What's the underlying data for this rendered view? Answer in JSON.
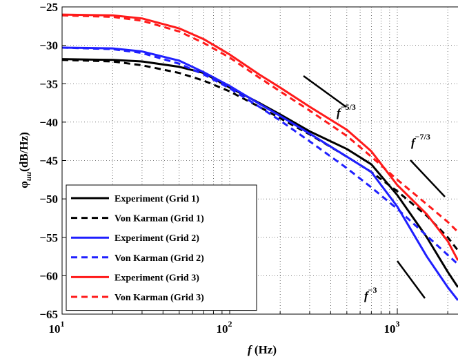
{
  "chart_data": {
    "type": "line",
    "x_label": {
      "main": "f",
      "rest": " (Hz)"
    },
    "y_label": {
      "main": "φ",
      "sub": "uu",
      "rest": "(dB/Hz)"
    },
    "x": [
      10,
      20,
      30,
      50,
      70,
      100,
      150,
      200,
      300,
      500,
      700,
      1000,
      1500,
      2000,
      2300
    ],
    "series": [
      {
        "name": "Experiment (Grid 1)",
        "color": "#000000",
        "dash": false,
        "values": [
          -31.8,
          -31.9,
          -32.1,
          -32.8,
          -33.6,
          -35.5,
          -37.5,
          -39,
          -41.2,
          -43.5,
          -45.5,
          -49.5,
          -55,
          -59.5,
          -61.5
        ]
      },
      {
        "name": "Von Karman (Grid 1)",
        "color": "#000000",
        "dash": true,
        "values": [
          -31.9,
          -32.1,
          -32.6,
          -33.6,
          -34.6,
          -36,
          -38,
          -39.5,
          -41.6,
          -44.5,
          -46.5,
          -49,
          -52.2,
          -55,
          -56.7
        ]
      },
      {
        "name": "Experiment (Grid 2)",
        "color": "#1f1fff",
        "dash": false,
        "values": [
          -30.3,
          -30.4,
          -30.8,
          -32,
          -33.5,
          -35.3,
          -37.6,
          -39.2,
          -41.5,
          -44.5,
          -46.5,
          -51,
          -57.5,
          -61.5,
          -63.2
        ]
      },
      {
        "name": "Von Karman (Grid 2)",
        "color": "#1f1fff",
        "dash": true,
        "values": [
          -30.3,
          -30.5,
          -31,
          -32.4,
          -33.8,
          -35.6,
          -38,
          -39.8,
          -42.5,
          -46,
          -48.5,
          -51.3,
          -54.8,
          -57.3,
          -58.5
        ]
      },
      {
        "name": "Experiment (Grid 3)",
        "color": "#ff1a1a",
        "dash": false,
        "values": [
          -26,
          -26.1,
          -26.5,
          -27.8,
          -29.2,
          -31.2,
          -33.8,
          -35.5,
          -38,
          -41,
          -43.8,
          -48.2,
          -52,
          -55.5,
          -58
        ]
      },
      {
        "name": "Von Karman (Grid 3)",
        "color": "#ff1a1a",
        "dash": true,
        "values": [
          -26.1,
          -26.3,
          -26.8,
          -28.2,
          -29.7,
          -31.6,
          -34.2,
          -36,
          -38.5,
          -41.8,
          -44.5,
          -47.5,
          -50.7,
          -53,
          -54.3
        ]
      }
    ],
    "xscale": "log",
    "xlim": [
      10,
      2300
    ],
    "ylim": [
      -65,
      -25
    ],
    "xticks": [
      {
        "value": 10,
        "label": "10",
        "exponent": "1"
      },
      {
        "value": 100,
        "label": "10",
        "exponent": "2"
      },
      {
        "value": 1000,
        "label": "10",
        "exponent": "3"
      }
    ],
    "minor_xticks": [
      20,
      30,
      40,
      50,
      60,
      70,
      80,
      90,
      200,
      300,
      400,
      500,
      600,
      700,
      800,
      900,
      2000
    ],
    "yticks": [
      {
        "value": -65,
        "label": "−65"
      },
      {
        "value": -60,
        "label": "−60"
      },
      {
        "value": -55,
        "label": "−55"
      },
      {
        "value": -50,
        "label": "−50"
      },
      {
        "value": -45,
        "label": "−45"
      },
      {
        "value": -40,
        "label": "−40"
      },
      {
        "value": -35,
        "label": "−35"
      },
      {
        "value": -30,
        "label": "−30"
      },
      {
        "value": -25,
        "label": "−25"
      }
    ],
    "grid": true,
    "legend": "lower left",
    "annotations": [
      {
        "base": "f",
        "exponent": "−5/3"
      },
      {
        "base": "f",
        "exponent": "−7/3"
      },
      {
        "base": "f",
        "exponent": "−3"
      }
    ]
  }
}
